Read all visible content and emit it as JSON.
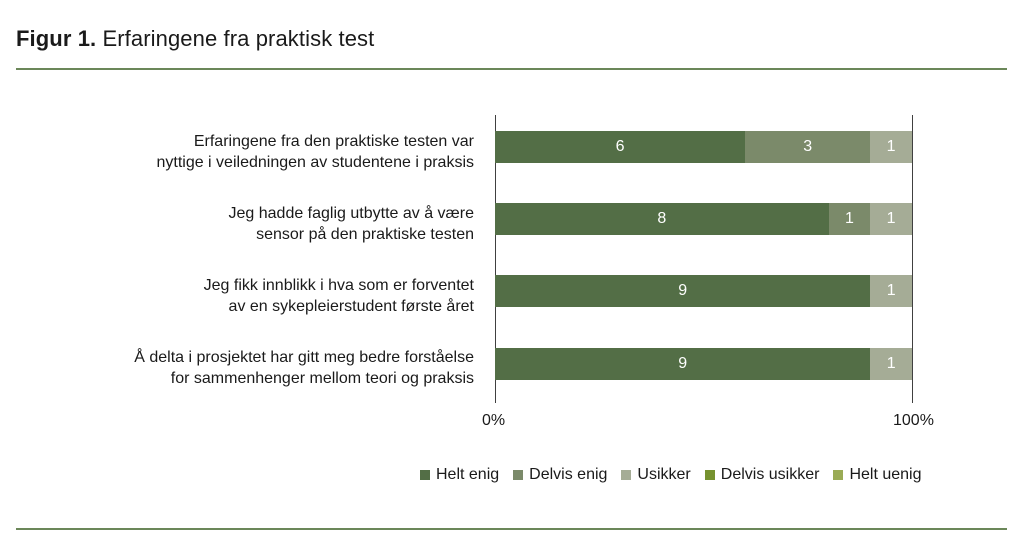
{
  "figure": {
    "label": "Figur 1.",
    "title": "Erfaringene fra praktisk test"
  },
  "colors": {
    "helt_enig": "#536e46",
    "delvis_enig": "#7b8a6a",
    "usikker": "#a5ac96",
    "delvis_usikker": "#76922f",
    "helt_uenig": "#9aab55",
    "rule": "#6b8759"
  },
  "chart_data": {
    "type": "bar",
    "orientation": "horizontal",
    "stacked": "100%",
    "title": "Figur 1. Erfaringene fra praktisk test",
    "xlabel": "",
    "ylabel": "",
    "xlim": [
      0,
      100
    ],
    "x_ticks": [
      "0%",
      "100%"
    ],
    "grid": false,
    "legend_position": "bottom",
    "categories": [
      "Erfaringene fra den praktiske testen var nyttige i veiledningen av studentene i praksis",
      "Jeg hadde faglig utbytte av å være sensor på den praktiske testen",
      "Jeg fikk innblikk i hva som er forventet av en sykepleierstudent første året",
      "Å delta i prosjektet har gitt meg bedre forståelse for sammenhenger mellom teori og praksis"
    ],
    "series": [
      {
        "name": "Helt enig",
        "color": "#536e46",
        "values": [
          6,
          8,
          9,
          9
        ]
      },
      {
        "name": "Delvis enig",
        "color": "#7b8a6a",
        "values": [
          3,
          1,
          0,
          0
        ]
      },
      {
        "name": "Usikker",
        "color": "#a5ac96",
        "values": [
          1,
          1,
          1,
          1
        ]
      },
      {
        "name": "Delvis usikker",
        "color": "#76922f",
        "values": [
          0,
          0,
          0,
          0
        ]
      },
      {
        "name": "Helt uenig",
        "color": "#9aab55",
        "values": [
          0,
          0,
          0,
          0
        ]
      }
    ]
  },
  "rows": [
    {
      "line1": "Erfaringene fra den praktiske testen var",
      "line2": "nyttige i veiledningen av studentene i praksis"
    },
    {
      "line1": "Jeg hadde faglig utbytte av å være",
      "line2": "sensor på den praktiske testen"
    },
    {
      "line1": "Jeg fikk innblikk i hva som er forventet",
      "line2": "av en sykepleierstudent første året"
    },
    {
      "line1": "Å delta i prosjektet har gitt meg bedre forståelse",
      "line2": "for sammenhenger mellom teori og praksis"
    }
  ],
  "axis": {
    "min_label": "0%",
    "max_label": "100%"
  },
  "legend": [
    "Helt enig",
    "Delvis enig",
    "Usikker",
    "Delvis usikker",
    "Helt uenig"
  ]
}
